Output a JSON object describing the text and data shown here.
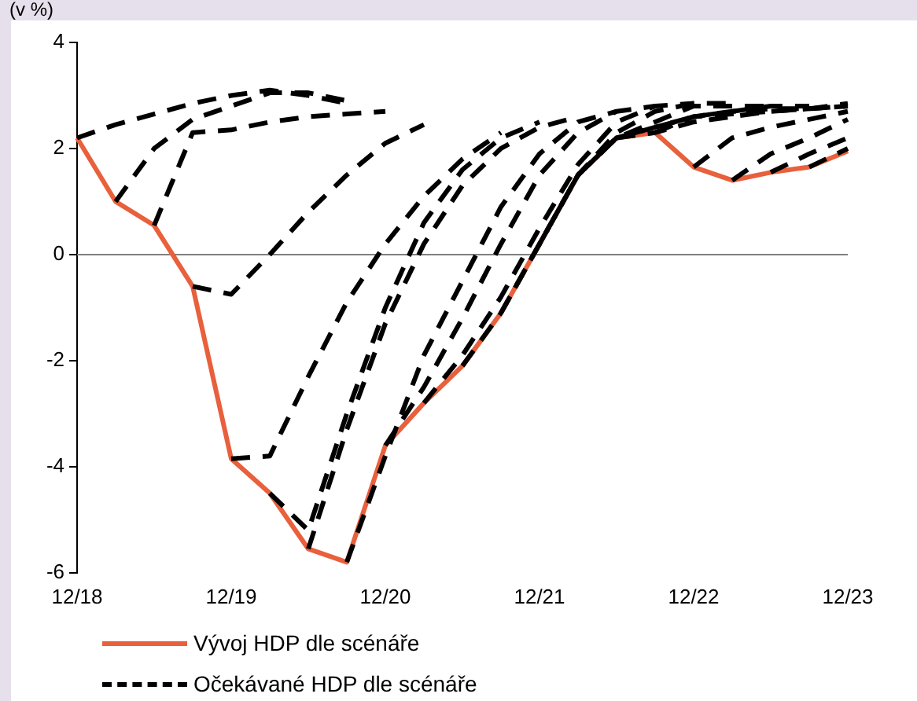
{
  "chart_data": {
    "type": "line",
    "ylabel": "(v %)",
    "categories": [
      "12/18",
      null,
      null,
      null,
      "12/19",
      null,
      null,
      null,
      "12/20",
      null,
      null,
      null,
      "12/21",
      null,
      null,
      null,
      "12/22",
      null,
      null,
      null,
      "12/23"
    ],
    "ylim": [
      -6,
      4
    ],
    "yticks": [
      -6,
      -4,
      -2,
      0,
      2,
      4
    ],
    "grid": false,
    "legend": "bottom",
    "marker": "none",
    "ref_lines": [
      {
        "axis": "y",
        "value": 0,
        "color": "#7f7f7f"
      }
    ],
    "series": [
      {
        "name": "Vývoj HDP dle scénáře",
        "color": "#e8603c",
        "line_style": "solid",
        "values": [
          2.2,
          1.0,
          0.55,
          -0.6,
          -3.85,
          -4.5,
          -5.55,
          -5.8,
          -3.6,
          -2.8,
          -2.1,
          -1.1,
          0.2,
          1.5,
          2.2,
          2.3,
          1.65,
          1.4,
          1.55,
          1.65,
          1.95
        ]
      },
      {
        "name": "Očekávané HDP dle scénáře",
        "color": "#000000",
        "line_style": "dashed",
        "values": [
          2.2,
          2.45,
          2.65,
          2.85,
          3.0,
          3.1,
          3.0,
          2.85,
          null,
          null,
          null,
          null,
          null,
          null,
          null,
          null,
          null,
          null,
          null,
          null,
          null
        ]
      },
      {
        "color": "#000000",
        "line_style": "dashed",
        "values": [
          null,
          1.0,
          2.0,
          2.55,
          2.8,
          3.05,
          3.05,
          2.9,
          null,
          null,
          null,
          null,
          null,
          null,
          null,
          null,
          null,
          null,
          null,
          null,
          null
        ]
      },
      {
        "color": "#000000",
        "line_style": "dashed",
        "values": [
          null,
          null,
          0.55,
          2.3,
          2.35,
          2.5,
          2.6,
          2.65,
          2.7,
          null,
          null,
          null,
          null,
          null,
          null,
          null,
          null,
          null,
          null,
          null,
          null
        ]
      },
      {
        "color": "#000000",
        "line_style": "dashed",
        "values": [
          null,
          null,
          null,
          -0.6,
          -0.75,
          0.0,
          0.8,
          1.5,
          2.1,
          2.45,
          null,
          null,
          null,
          null,
          null,
          null,
          null,
          null,
          null,
          null,
          null
        ]
      },
      {
        "color": "#000000",
        "line_style": "dashed",
        "values": [
          null,
          null,
          null,
          null,
          -3.85,
          -3.8,
          -2.3,
          -0.9,
          0.2,
          1.1,
          1.8,
          2.3,
          null,
          null,
          null,
          null,
          null,
          null,
          null,
          null,
          null
        ]
      },
      {
        "color": "#000000",
        "line_style": "dashed",
        "values": [
          null,
          null,
          null,
          null,
          null,
          -4.5,
          -5.2,
          -3.0,
          -1.0,
          0.6,
          1.6,
          2.2,
          2.5,
          null,
          null,
          null,
          null,
          null,
          null,
          null,
          null
        ]
      },
      {
        "color": "#000000",
        "line_style": "dashed",
        "values": [
          null,
          null,
          null,
          null,
          null,
          null,
          -5.55,
          -3.3,
          -1.3,
          0.2,
          1.3,
          2.0,
          2.4,
          2.6,
          null,
          null,
          null,
          null,
          null,
          null,
          null
        ]
      },
      {
        "color": "#000000",
        "line_style": "dashed",
        "values": [
          null,
          null,
          null,
          null,
          null,
          null,
          null,
          -5.8,
          -3.8,
          -1.9,
          -0.5,
          0.9,
          1.9,
          2.5,
          2.7,
          null,
          null,
          null,
          null,
          null,
          null
        ]
      },
      {
        "color": "#000000",
        "line_style": "dashed",
        "values": [
          null,
          null,
          null,
          null,
          null,
          null,
          null,
          null,
          -3.6,
          -2.5,
          -1.2,
          0.2,
          1.5,
          2.3,
          2.7,
          2.8,
          null,
          null,
          null,
          null,
          null
        ]
      },
      {
        "color": "#000000",
        "line_style": "dashed",
        "values": [
          null,
          null,
          null,
          null,
          null,
          null,
          null,
          null,
          null,
          -2.8,
          -1.9,
          -0.8,
          0.5,
          1.7,
          2.5,
          2.8,
          2.85,
          null,
          null,
          null,
          null
        ]
      },
      {
        "color": "#000000",
        "line_style": "dashed",
        "values": [
          null,
          null,
          null,
          null,
          null,
          null,
          null,
          null,
          null,
          null,
          -2.1,
          -1.1,
          0.2,
          1.5,
          2.3,
          2.7,
          2.85,
          2.85,
          null,
          null,
          null
        ]
      },
      {
        "color": "#000000",
        "line_style": "dashed",
        "values": [
          null,
          null,
          null,
          null,
          null,
          null,
          null,
          null,
          null,
          null,
          null,
          -1.1,
          0.2,
          1.5,
          2.2,
          2.5,
          2.8,
          2.8,
          2.8,
          null,
          null
        ]
      },
      {
        "color": "#000000",
        "line_style": "dashed",
        "values": [
          null,
          null,
          null,
          null,
          null,
          null,
          null,
          null,
          null,
          null,
          null,
          null,
          0.2,
          1.5,
          2.2,
          2.4,
          2.6,
          2.7,
          2.8,
          2.8,
          null
        ]
      },
      {
        "color": "#000000",
        "line_style": "dashed",
        "values": [
          null,
          null,
          null,
          null,
          null,
          null,
          null,
          null,
          null,
          null,
          null,
          null,
          null,
          1.5,
          2.2,
          2.4,
          2.6,
          2.7,
          2.75,
          2.75,
          2.8
        ]
      },
      {
        "color": "#000000",
        "line_style": "dashed",
        "values": [
          null,
          null,
          null,
          null,
          null,
          null,
          null,
          null,
          null,
          null,
          null,
          null,
          null,
          null,
          2.2,
          2.3,
          2.5,
          2.6,
          2.7,
          2.75,
          2.8
        ]
      },
      {
        "color": "#000000",
        "line_style": "dashed",
        "values": [
          null,
          null,
          null,
          null,
          null,
          null,
          null,
          null,
          null,
          null,
          null,
          null,
          null,
          null,
          null,
          2.3,
          2.6,
          2.65,
          2.7,
          2.75,
          2.85
        ]
      },
      {
        "color": "#000000",
        "line_style": "dashed",
        "values": [
          null,
          null,
          null,
          null,
          null,
          null,
          null,
          null,
          null,
          null,
          null,
          null,
          null,
          null,
          null,
          null,
          1.65,
          2.2,
          2.4,
          2.55,
          2.7
        ]
      },
      {
        "color": "#000000",
        "line_style": "dashed",
        "values": [
          null,
          null,
          null,
          null,
          null,
          null,
          null,
          null,
          null,
          null,
          null,
          null,
          null,
          null,
          null,
          null,
          null,
          1.4,
          1.9,
          2.2,
          2.55
        ]
      },
      {
        "color": "#000000",
        "line_style": "dashed",
        "values": [
          null,
          null,
          null,
          null,
          null,
          null,
          null,
          null,
          null,
          null,
          null,
          null,
          null,
          null,
          null,
          null,
          null,
          null,
          1.55,
          1.9,
          2.2
        ]
      },
      {
        "color": "#000000",
        "line_style": "dashed",
        "values": [
          null,
          null,
          null,
          null,
          null,
          null,
          null,
          null,
          null,
          null,
          null,
          null,
          null,
          null,
          null,
          null,
          null,
          null,
          null,
          1.65,
          2.0
        ]
      }
    ]
  }
}
